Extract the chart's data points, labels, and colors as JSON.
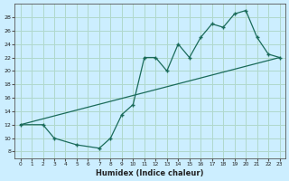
{
  "xlabel": "Humidex (Indice chaleur)",
  "bg_color": "#cceeff",
  "grid_color": "#b0d8cc",
  "line_color": "#1a6b5a",
  "xlim": [
    -0.5,
    23.5
  ],
  "ylim": [
    7,
    30
  ],
  "xticks": [
    0,
    1,
    2,
    3,
    4,
    5,
    6,
    7,
    8,
    9,
    10,
    11,
    12,
    13,
    14,
    15,
    16,
    17,
    18,
    19,
    20,
    21,
    22,
    23
  ],
  "yticks": [
    8,
    10,
    12,
    14,
    16,
    18,
    20,
    22,
    24,
    26,
    28
  ],
  "line1_x": [
    0,
    2,
    3,
    5,
    7,
    8,
    9,
    10,
    11,
    12,
    13,
    14,
    15,
    16,
    17,
    18,
    19,
    20,
    21,
    22,
    23
  ],
  "line1_y": [
    12,
    12,
    10,
    9,
    8.5,
    10,
    13.5,
    15,
    22,
    22,
    20,
    24,
    22,
    25,
    27,
    26.5,
    28.5,
    29,
    25,
    22.5,
    22
  ],
  "line2_x": [
    0,
    23
  ],
  "line2_y": [
    12,
    22
  ]
}
